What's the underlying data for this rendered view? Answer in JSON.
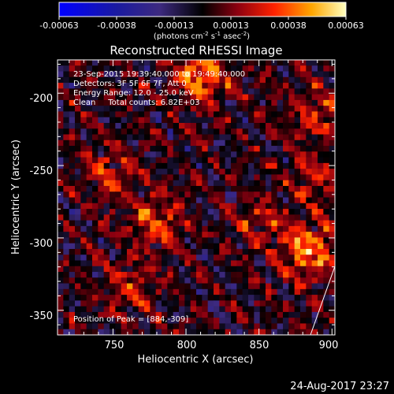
{
  "colorbar": {
    "ticks": [
      "-0.00063",
      "-0.00038",
      "-0.00013",
      "0.00013",
      "0.00038",
      "0.00063"
    ],
    "unit_prefix": "(photons cm",
    "unit_exp1": "-2",
    "unit_mid": " s",
    "unit_exp2": "-1",
    "unit_tail": " asec",
    "unit_exp3": "-2",
    "unit_close": ")"
  },
  "title": "Reconstructed RHESSI Image",
  "annotations": {
    "line1": "23-Sep-2015 19:39:40.000 to 19:49:40.000",
    "line2": "Detectors: 3F 5F 6F 7F, Att 0",
    "line3": "Energy Range: 12.0 - 25.0 keV",
    "line4": "Clean     Total counts: 6.82E+03",
    "peak": "Position of Peak = [884,-309]"
  },
  "footer_date": "24-Aug-2017 23:27",
  "chart_data": {
    "type": "heatmap",
    "title": "Reconstructed RHESSI Image",
    "xlabel": "Heliocentric X (arcsec)",
    "ylabel": "Heliocentric Y (arcsec)",
    "xlim": [
      712,
      902
    ],
    "ylim": [
      -367,
      -177
    ],
    "x_ticks": [
      750,
      800,
      850,
      900
    ],
    "y_ticks": [
      -200,
      -250,
      -300,
      -350
    ],
    "colorbar_range": [
      -0.00063,
      0.00063
    ],
    "colormap": [
      "#0000ff",
      "#1a1aa0",
      "#3d2a80",
      "#000000",
      "#8a0010",
      "#ff2200",
      "#ffa600",
      "#ffffc0"
    ],
    "peaks": [
      {
        "x": 810,
        "y": -190,
        "v": 0.0006
      },
      {
        "x": 884,
        "y": -309,
        "v": 0.00063
      },
      {
        "x": 780,
        "y": -290,
        "v": 0.0004
      },
      {
        "x": 850,
        "y": -290,
        "v": 0.0003
      },
      {
        "x": 760,
        "y": -335,
        "v": 0.0003
      },
      {
        "x": 890,
        "y": -215,
        "v": 0.00035
      },
      {
        "x": 750,
        "y": -255,
        "v": 0.00035
      },
      {
        "x": 890,
        "y": -260,
        "v": 0.0003
      }
    ]
  }
}
